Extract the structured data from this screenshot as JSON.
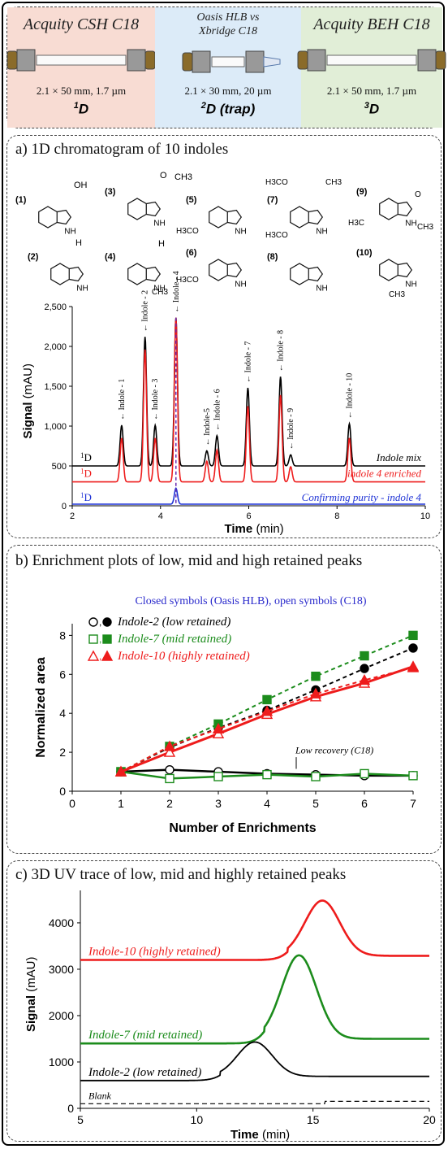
{
  "columns": [
    {
      "title": "Acquity CSH C18",
      "spec": "2.1 × 50 mm, 1.7 µm",
      "dim": "1",
      "dim_suffix": "D",
      "bg": "#f8dcd3"
    },
    {
      "title": "Oasis HLB vs\nXbridge C18",
      "spec": "2.1 × 30 mm, 20 µm",
      "dim": "2",
      "dim_suffix": "D (trap)",
      "bg": "#dcebf8"
    },
    {
      "title": "Acquity BEH C18",
      "spec": "2.1 × 50 mm, 1.7 µm",
      "dim": "3",
      "dim_suffix": "D",
      "bg": "#e1eed7"
    }
  ],
  "panel_a": {
    "heading": "a) 1D chromatogram of 10 indoles",
    "structure_labels": [
      "(1)",
      "(2)",
      "(3)",
      "(4)",
      "(5)",
      "(6)",
      "(7)",
      "(8)",
      "(9)",
      "(10)"
    ],
    "atom_labels": {
      "oh": "OH",
      "nh": "NH",
      "h": "H",
      "ch3": "CH3",
      "h3co": "H3CO",
      "h3c": "H3C",
      "o": "O"
    },
    "chart_data": {
      "type": "line",
      "xlabel_bold": "Time",
      "xlabel_unit": "(min)",
      "ylabel_bold": "Signal",
      "ylabel_unit": "(mAU)",
      "xlim": [
        2,
        10
      ],
      "ylim": [
        0,
        2500
      ],
      "xticks": [
        "2",
        "4",
        "6",
        "8",
        "10"
      ],
      "yticks": [
        "0",
        "500",
        "1,000",
        "1,500",
        "2,000",
        "2,500"
      ],
      "peaks": [
        {
          "label": "Indole - 1",
          "rt": 3.12,
          "black": 1010,
          "red": 850
        },
        {
          "label": "Indole - 2",
          "rt": 3.65,
          "black": 2120,
          "red": 1960
        },
        {
          "label": "Indole - 3",
          "rt": 3.88,
          "black": 1010,
          "red": 850
        },
        {
          "label": "Indole - 4",
          "rt": 4.35,
          "black": 2360,
          "red": 2360
        },
        {
          "label": "Indole-5",
          "rt": 5.05,
          "black": 690,
          "red": 560
        },
        {
          "label": "Indole - 6",
          "rt": 5.28,
          "black": 880,
          "red": 700
        },
        {
          "label": "Indole - 7",
          "rt": 5.98,
          "black": 1480,
          "red": 1250
        },
        {
          "label": "Indole - 8",
          "rt": 6.72,
          "black": 1620,
          "red": 1390
        },
        {
          "label": "Indole - 9",
          "rt": 6.95,
          "black": 640,
          "red": 490
        },
        {
          "label": "Indole - 10",
          "rt": 8.28,
          "black": 1030,
          "red": 850
        }
      ],
      "series": [
        {
          "name": "Indole mix",
          "prefix": "1",
          "prefix_suffix": "D",
          "baseline": 500,
          "color": "#000000"
        },
        {
          "name": "indole 4 enriched",
          "prefix": "1",
          "prefix_suffix": "D",
          "baseline": 300,
          "color": "#ee1c1c"
        },
        {
          "name": "Confirming purity - indole 4",
          "prefix": "1",
          "prefix_suffix": "D",
          "baseline": 20,
          "color": "#1f33d6"
        }
      ],
      "blue_peak": {
        "rt": 4.35,
        "value": 220
      },
      "dashed_marker_x": 4.35
    }
  },
  "panel_b": {
    "heading": "b) Enrichment plots of low, mid and high retained peaks",
    "note": "Closed symbols (Oasis HLB), open symbols (C18)",
    "annotation": "Low recovery (C18)",
    "chart_data": {
      "type": "scatter",
      "xlabel": "Number of Enrichments",
      "ylabel": "Normalized area",
      "xlim": [
        0,
        7
      ],
      "ylim": [
        0,
        8.6
      ],
      "xticks": [
        "0",
        "1",
        "2",
        "3",
        "4",
        "5",
        "6",
        "7"
      ],
      "yticks": [
        "0",
        "2",
        "4",
        "6",
        "8"
      ],
      "x": [
        1,
        2,
        3,
        4,
        5,
        6,
        7
      ],
      "series": [
        {
          "name": "Indole-2  (low retained)",
          "color": "#000000",
          "marker": "circle",
          "closed": [
            1.0,
            2.25,
            3.25,
            4.15,
            5.2,
            6.3,
            7.35
          ],
          "open": [
            1.0,
            1.1,
            1.0,
            0.9,
            0.85,
            0.8,
            0.8
          ]
        },
        {
          "name": "Indole-7  (mid retained)",
          "color": "#1c8c1c",
          "marker": "square",
          "closed": [
            1.0,
            2.3,
            3.45,
            4.7,
            5.9,
            6.95,
            8.0
          ],
          "open": [
            1.0,
            0.65,
            0.75,
            0.85,
            0.75,
            0.9,
            0.8
          ]
        },
        {
          "name": "Indole-10  (highly retained)",
          "color": "#ee1c1c",
          "marker": "triangle",
          "closed": [
            1.0,
            2.3,
            3.2,
            4.1,
            5.0,
            5.7,
            6.35
          ],
          "open": [
            1.0,
            2.0,
            2.95,
            3.95,
            4.85,
            5.55,
            6.4
          ]
        }
      ]
    }
  },
  "panel_c": {
    "heading": "c) 3D UV trace of low, mid and highly retained peaks",
    "chart_data": {
      "type": "line",
      "xlabel_bold": "Time",
      "xlabel_unit": "(min)",
      "ylabel_bold": "Signal",
      "ylabel_unit": "(mAU)",
      "xlim": [
        5,
        20
      ],
      "ylim": [
        0,
        4700
      ],
      "xticks": [
        "5",
        "10",
        "15",
        "20"
      ],
      "yticks": [
        "0",
        "1000",
        "2000",
        "3000",
        "4000"
      ],
      "series": [
        {
          "name": "Indole-10  (highly retained)",
          "color": "#ee1c1c",
          "baseline": 3200,
          "end": 3290,
          "peak_rt": 15.4,
          "peak": 4480,
          "width": 0.75
        },
        {
          "name": "Indole-7  (mid retained)",
          "color": "#1c8c1c",
          "baseline": 1400,
          "end": 1500,
          "peak_rt": 14.4,
          "peak": 3300,
          "width": 0.75
        },
        {
          "name": "Indole-2  (low retained)",
          "color": "#000000",
          "baseline": 600,
          "end": 690,
          "peak_rt": 12.5,
          "peak": 1430,
          "width": 0.75
        },
        {
          "name": "Blank",
          "color": "#000000",
          "baseline": 100,
          "end": 150,
          "peak_rt": null,
          "peak": null,
          "width": 0
        }
      ]
    }
  }
}
